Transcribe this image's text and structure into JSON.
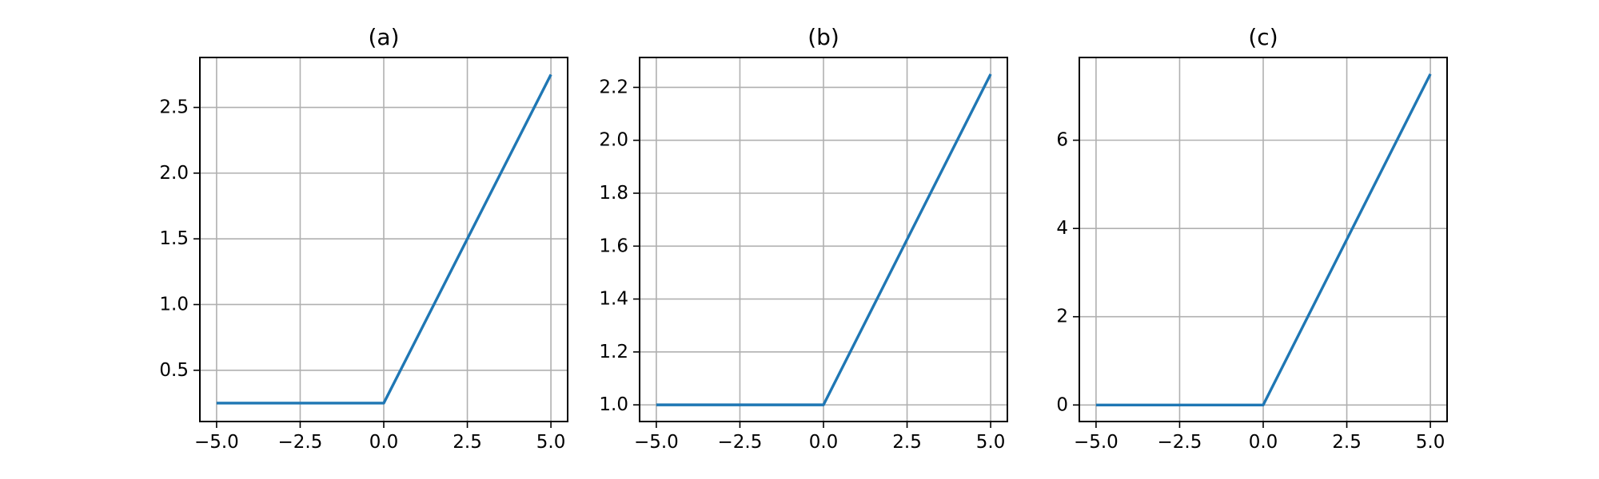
{
  "chart_data": [
    {
      "type": "line",
      "title": "(a)",
      "xlabel": "",
      "ylabel": "",
      "xlim": [
        -5.5,
        5.5
      ],
      "ylim": [
        0.11,
        2.88
      ],
      "xticks": [
        -5.0,
        -2.5,
        0.0,
        2.5,
        5.0
      ],
      "xtick_labels": [
        "−5.0",
        "−2.5",
        "0.0",
        "2.5",
        "5.0"
      ],
      "yticks": [
        0.5,
        1.0,
        1.5,
        2.0,
        2.5
      ],
      "ytick_labels": [
        "0.5",
        "1.0",
        "1.5",
        "2.0",
        "2.5"
      ],
      "grid": true,
      "series": [
        {
          "x": [
            -5.0,
            0.0,
            5.0
          ],
          "y": [
            0.25,
            0.25,
            2.75
          ],
          "color": "#1f77b4"
        }
      ]
    },
    {
      "type": "line",
      "title": "(b)",
      "xlabel": "",
      "ylabel": "",
      "xlim": [
        -5.5,
        5.5
      ],
      "ylim": [
        0.937,
        2.313
      ],
      "xticks": [
        -5.0,
        -2.5,
        0.0,
        2.5,
        5.0
      ],
      "xtick_labels": [
        "−5.0",
        "−2.5",
        "0.0",
        "2.5",
        "5.0"
      ],
      "yticks": [
        1.0,
        1.2,
        1.4,
        1.6,
        1.8,
        2.0,
        2.2
      ],
      "ytick_labels": [
        "1.0",
        "1.2",
        "1.4",
        "1.6",
        "1.8",
        "2.0",
        "2.2"
      ],
      "grid": true,
      "series": [
        {
          "x": [
            -5.0,
            0.0,
            5.0
          ],
          "y": [
            1.0,
            1.0,
            2.25
          ],
          "color": "#1f77b4"
        }
      ]
    },
    {
      "type": "line",
      "title": "(c)",
      "xlabel": "",
      "ylabel": "",
      "xlim": [
        -5.5,
        5.5
      ],
      "ylim": [
        -0.375,
        7.875
      ],
      "xticks": [
        -5.0,
        -2.5,
        0.0,
        2.5,
        5.0
      ],
      "xtick_labels": [
        "−5.0",
        "−2.5",
        "0.0",
        "2.5",
        "5.0"
      ],
      "yticks": [
        0,
        2,
        4,
        6
      ],
      "ytick_labels": [
        "0",
        "2",
        "4",
        "6"
      ],
      "grid": true,
      "series": [
        {
          "x": [
            -5.0,
            0.0,
            5.0
          ],
          "y": [
            0.0,
            0.0,
            7.5
          ],
          "color": "#1f77b4"
        }
      ]
    }
  ]
}
